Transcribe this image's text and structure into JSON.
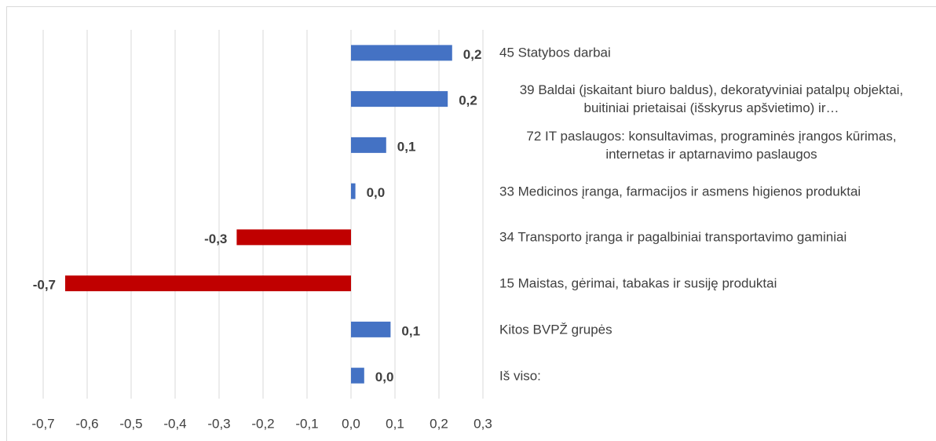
{
  "chart_data": {
    "type": "hbar",
    "categories": [
      "45 Statybos darbai",
      "39 Baldai (įskaitant biuro baldus), dekoratyviniai patalpų objektai, buitiniai prietaisai (išskyrus apšvietimo) ir…",
      "72 IT paslaugos: konsultavimas, programinės įrangos kūrimas, internetas ir aptarnavimo paslaugos",
      "33 Medicinos įranga, farmacijos ir asmens higienos produktai",
      "34 Transporto įranga ir pagalbiniai transportavimo gaminiai",
      "15 Maistas, gėrimai, tabakas ir susiję produktai",
      "Kitos BVPŽ grupės",
      "Iš viso:"
    ],
    "values": [
      0.23,
      0.22,
      0.08,
      0.01,
      -0.26,
      -0.65,
      0.09,
      0.03
    ],
    "value_labels": [
      "0,2",
      "0,2",
      "0,1",
      "0,0",
      "-0,3",
      "-0,7",
      "0,1",
      "0,0"
    ],
    "color": "#4472c4",
    "negative_color": "#c00000",
    "xlim": [
      -0.7,
      0.3
    ],
    "xticks": [
      {
        "value": -0.7,
        "label": "-0,7"
      },
      {
        "value": -0.6,
        "label": "-0,6"
      },
      {
        "value": -0.5,
        "label": "-0,5"
      },
      {
        "value": -0.4,
        "label": "-0,4"
      },
      {
        "value": -0.3,
        "label": "-0,3"
      },
      {
        "value": -0.2,
        "label": "-0,2"
      },
      {
        "value": -0.1,
        "label": "-0,1"
      },
      {
        "value": 0.0,
        "label": "0,0"
      },
      {
        "value": 0.1,
        "label": "0,1"
      },
      {
        "value": 0.2,
        "label": "0,2"
      },
      {
        "value": 0.3,
        "label": "0,3"
      }
    ],
    "grid": true
  }
}
